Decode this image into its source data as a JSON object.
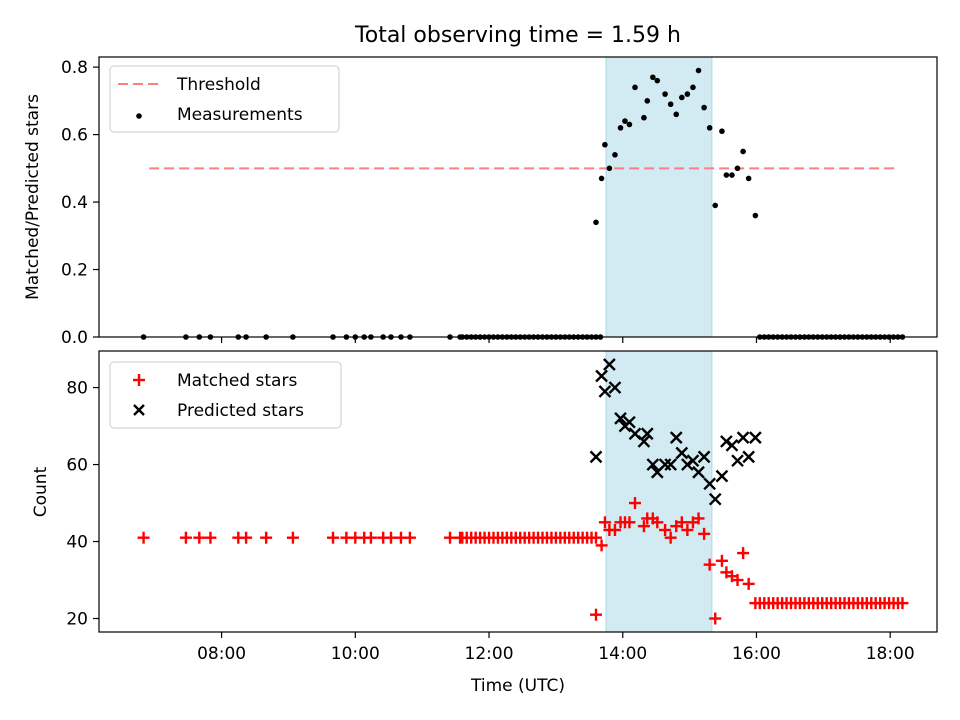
{
  "title": "Total observing time = 1.59 h",
  "chart_data": [
    {
      "type": "scatter",
      "ylabel": "Matched/Predicted stars",
      "ylim": [
        0,
        0.83
      ],
      "yticks": [
        "0.0",
        "0.2",
        "0.4",
        "0.6",
        "0.8"
      ],
      "grid": false,
      "legend_position": "top-left",
      "threshold": {
        "name": "Threshold",
        "value": 0.5,
        "color": "#ff7f7f",
        "start": "06:55",
        "end": "18:05"
      },
      "observing_window": {
        "start": "13:45",
        "end": "15:20",
        "color": "#add8e6"
      },
      "series": [
        {
          "name": "Measurements",
          "color": "#000000",
          "marker": "dot",
          "points": [
            [
              "06:50",
              0
            ],
            [
              "07:28",
              0
            ],
            [
              "07:40",
              0
            ],
            [
              "07:50",
              0
            ],
            [
              "08:15",
              0
            ],
            [
              "08:22",
              0
            ],
            [
              "08:40",
              0
            ],
            [
              "09:04",
              0
            ],
            [
              "09:40",
              0
            ],
            [
              "09:52",
              0
            ],
            [
              "10:00",
              0
            ],
            [
              "10:08",
              0
            ],
            [
              "10:14",
              0
            ],
            [
              "10:25",
              0
            ],
            [
              "10:32",
              0
            ],
            [
              "10:41",
              0
            ],
            [
              "10:49",
              0
            ],
            [
              "11:25",
              0
            ],
            [
              "11:34",
              0
            ],
            [
              "11:36",
              0
            ],
            [
              "11:40",
              0
            ],
            [
              "11:44",
              0
            ],
            [
              "11:48",
              0
            ],
            [
              "11:52",
              0
            ],
            [
              "11:56",
              0
            ],
            [
              "12:00",
              0
            ],
            [
              "12:04",
              0
            ],
            [
              "12:08",
              0
            ],
            [
              "12:12",
              0
            ],
            [
              "12:16",
              0
            ],
            [
              "12:20",
              0
            ],
            [
              "12:24",
              0
            ],
            [
              "12:28",
              0
            ],
            [
              "12:32",
              0
            ],
            [
              "12:36",
              0
            ],
            [
              "12:40",
              0
            ],
            [
              "12:44",
              0
            ],
            [
              "12:48",
              0
            ],
            [
              "12:52",
              0
            ],
            [
              "12:56",
              0
            ],
            [
              "13:00",
              0
            ],
            [
              "13:04",
              0
            ],
            [
              "13:08",
              0
            ],
            [
              "13:12",
              0
            ],
            [
              "13:16",
              0
            ],
            [
              "13:20",
              0
            ],
            [
              "13:24",
              0
            ],
            [
              "13:28",
              0
            ],
            [
              "13:32",
              0
            ],
            [
              "13:36",
              0
            ],
            [
              "13:40",
              0
            ],
            [
              "13:36",
              0.34
            ],
            [
              "13:41",
              0.47
            ],
            [
              "13:44",
              0.57
            ],
            [
              "13:48",
              0.5
            ],
            [
              "13:53",
              0.54
            ],
            [
              "13:58",
              0.62
            ],
            [
              "14:02",
              0.64
            ],
            [
              "14:06",
              0.63
            ],
            [
              "14:11",
              0.74
            ],
            [
              "14:19",
              0.65
            ],
            [
              "14:22",
              0.7
            ],
            [
              "14:27",
              0.77
            ],
            [
              "14:31",
              0.76
            ],
            [
              "14:38",
              0.72
            ],
            [
              "14:43",
              0.69
            ],
            [
              "14:48",
              0.66
            ],
            [
              "14:53",
              0.71
            ],
            [
              "14:58",
              0.72
            ],
            [
              "15:03",
              0.74
            ],
            [
              "15:08",
              0.79
            ],
            [
              "15:13",
              0.68
            ],
            [
              "15:18",
              0.62
            ],
            [
              "15:23",
              0.39
            ],
            [
              "15:29",
              0.61
            ],
            [
              "15:33",
              0.48
            ],
            [
              "15:38",
              0.48
            ],
            [
              "15:43",
              0.5
            ],
            [
              "15:48",
              0.55
            ],
            [
              "15:53",
              0.47
            ],
            [
              "15:59",
              0.36
            ],
            [
              "16:03",
              0
            ],
            [
              "16:07",
              0
            ],
            [
              "16:11",
              0
            ],
            [
              "16:15",
              0
            ],
            [
              "16:19",
              0
            ],
            [
              "16:23",
              0
            ],
            [
              "16:27",
              0
            ],
            [
              "16:31",
              0
            ],
            [
              "16:35",
              0
            ],
            [
              "16:39",
              0
            ],
            [
              "16:43",
              0
            ],
            [
              "16:47",
              0
            ],
            [
              "16:51",
              0
            ],
            [
              "16:55",
              0
            ],
            [
              "16:59",
              0
            ],
            [
              "17:03",
              0
            ],
            [
              "17:07",
              0
            ],
            [
              "17:11",
              0
            ],
            [
              "17:15",
              0
            ],
            [
              "17:19",
              0
            ],
            [
              "17:23",
              0
            ],
            [
              "17:27",
              0
            ],
            [
              "17:31",
              0
            ],
            [
              "17:35",
              0
            ],
            [
              "17:39",
              0
            ],
            [
              "17:43",
              0
            ],
            [
              "17:47",
              0
            ],
            [
              "17:51",
              0
            ],
            [
              "17:55",
              0
            ],
            [
              "17:59",
              0
            ],
            [
              "18:03",
              0
            ],
            [
              "18:07",
              0
            ],
            [
              "18:11",
              0
            ]
          ]
        }
      ]
    },
    {
      "type": "scatter",
      "xlabel": "Time (UTC)",
      "ylabel": "Count",
      "ylim": [
        16.5,
        89.5
      ],
      "yticks": [
        "20",
        "40",
        "60",
        "80"
      ],
      "xticks": [
        "08:00",
        "10:00",
        "12:00",
        "14:00",
        "16:00",
        "18:00"
      ],
      "xlim": [
        "06:10",
        "18:42"
      ],
      "grid": false,
      "legend_position": "top-left",
      "observing_window": {
        "start": "13:45",
        "end": "15:20",
        "color": "#add8e6"
      },
      "series": [
        {
          "name": "Matched stars",
          "color": "#ff0000",
          "marker": "plus",
          "points": [
            [
              "06:50",
              41
            ],
            [
              "07:28",
              41
            ],
            [
              "07:40",
              41
            ],
            [
              "07:50",
              41
            ],
            [
              "08:15",
              41
            ],
            [
              "08:22",
              41
            ],
            [
              "08:40",
              41
            ],
            [
              "09:04",
              41
            ],
            [
              "09:40",
              41
            ],
            [
              "09:52",
              41
            ],
            [
              "10:00",
              41
            ],
            [
              "10:08",
              41
            ],
            [
              "10:14",
              41
            ],
            [
              "10:25",
              41
            ],
            [
              "10:32",
              41
            ],
            [
              "10:41",
              41
            ],
            [
              "10:49",
              41
            ],
            [
              "11:25",
              41
            ],
            [
              "11:34",
              41
            ],
            [
              "11:36",
              41
            ],
            [
              "11:40",
              41
            ],
            [
              "11:44",
              41
            ],
            [
              "11:48",
              41
            ],
            [
              "11:52",
              41
            ],
            [
              "11:56",
              41
            ],
            [
              "12:00",
              41
            ],
            [
              "12:04",
              41
            ],
            [
              "12:08",
              41
            ],
            [
              "12:12",
              41
            ],
            [
              "12:16",
              41
            ],
            [
              "12:20",
              41
            ],
            [
              "12:24",
              41
            ],
            [
              "12:28",
              41
            ],
            [
              "12:32",
              41
            ],
            [
              "12:36",
              41
            ],
            [
              "12:40",
              41
            ],
            [
              "12:44",
              41
            ],
            [
              "12:48",
              41
            ],
            [
              "12:52",
              41
            ],
            [
              "12:56",
              41
            ],
            [
              "13:00",
              41
            ],
            [
              "13:04",
              41
            ],
            [
              "13:08",
              41
            ],
            [
              "13:12",
              41
            ],
            [
              "13:16",
              41
            ],
            [
              "13:20",
              41
            ],
            [
              "13:24",
              41
            ],
            [
              "13:28",
              41
            ],
            [
              "13:32",
              41
            ],
            [
              "13:36",
              41
            ],
            [
              "13:36",
              21
            ],
            [
              "13:41",
              39
            ],
            [
              "13:44",
              45
            ],
            [
              "13:48",
              43
            ],
            [
              "13:53",
              43
            ],
            [
              "13:58",
              45
            ],
            [
              "14:02",
              45
            ],
            [
              "14:06",
              45
            ],
            [
              "14:11",
              50
            ],
            [
              "14:19",
              44
            ],
            [
              "14:22",
              46
            ],
            [
              "14:27",
              46
            ],
            [
              "14:31",
              45
            ],
            [
              "14:38",
              43
            ],
            [
              "14:43",
              41
            ],
            [
              "14:48",
              44
            ],
            [
              "14:53",
              45
            ],
            [
              "14:58",
              43
            ],
            [
              "15:03",
              45
            ],
            [
              "15:08",
              46
            ],
            [
              "15:13",
              42
            ],
            [
              "15:18",
              34
            ],
            [
              "15:23",
              20
            ],
            [
              "15:29",
              35
            ],
            [
              "15:33",
              32
            ],
            [
              "15:38",
              31
            ],
            [
              "15:43",
              30
            ],
            [
              "15:48",
              37
            ],
            [
              "15:53",
              29
            ],
            [
              "15:59",
              24
            ],
            [
              "16:03",
              24
            ],
            [
              "16:07",
              24
            ],
            [
              "16:11",
              24
            ],
            [
              "16:15",
              24
            ],
            [
              "16:19",
              24
            ],
            [
              "16:23",
              24
            ],
            [
              "16:27",
              24
            ],
            [
              "16:31",
              24
            ],
            [
              "16:35",
              24
            ],
            [
              "16:39",
              24
            ],
            [
              "16:43",
              24
            ],
            [
              "16:47",
              24
            ],
            [
              "16:51",
              24
            ],
            [
              "16:55",
              24
            ],
            [
              "16:59",
              24
            ],
            [
              "17:03",
              24
            ],
            [
              "17:07",
              24
            ],
            [
              "17:11",
              24
            ],
            [
              "17:15",
              24
            ],
            [
              "17:19",
              24
            ],
            [
              "17:23",
              24
            ],
            [
              "17:27",
              24
            ],
            [
              "17:31",
              24
            ],
            [
              "17:35",
              24
            ],
            [
              "17:39",
              24
            ],
            [
              "17:43",
              24
            ],
            [
              "17:47",
              24
            ],
            [
              "17:51",
              24
            ],
            [
              "17:55",
              24
            ],
            [
              "17:59",
              24
            ],
            [
              "18:03",
              24
            ],
            [
              "18:07",
              24
            ],
            [
              "18:11",
              24
            ]
          ]
        },
        {
          "name": "Predicted stars",
          "color": "#000000",
          "marker": "x",
          "points": [
            [
              "13:36",
              62
            ],
            [
              "13:41",
              83
            ],
            [
              "13:44",
              79
            ],
            [
              "13:48",
              86
            ],
            [
              "13:53",
              80
            ],
            [
              "13:58",
              72
            ],
            [
              "14:02",
              70
            ],
            [
              "14:06",
              71
            ],
            [
              "14:11",
              68
            ],
            [
              "14:19",
              66
            ],
            [
              "14:22",
              68
            ],
            [
              "14:27",
              60
            ],
            [
              "14:31",
              58
            ],
            [
              "14:38",
              60
            ],
            [
              "14:43",
              60
            ],
            [
              "14:48",
              67
            ],
            [
              "14:53",
              63
            ],
            [
              "14:58",
              60
            ],
            [
              "15:03",
              61
            ],
            [
              "15:08",
              58
            ],
            [
              "15:13",
              62
            ],
            [
              "15:18",
              55
            ],
            [
              "15:23",
              51
            ],
            [
              "15:29",
              57
            ],
            [
              "15:33",
              66
            ],
            [
              "15:38",
              65
            ],
            [
              "15:43",
              61
            ],
            [
              "15:48",
              67
            ],
            [
              "15:53",
              62
            ],
            [
              "15:59",
              67
            ]
          ]
        }
      ]
    }
  ]
}
